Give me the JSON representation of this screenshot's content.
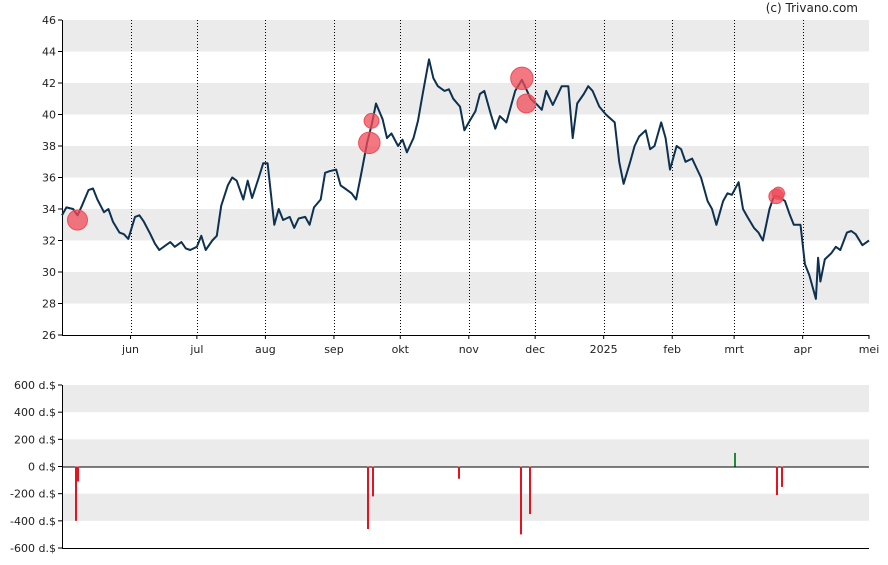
{
  "credit": "(c) Trivano.com",
  "colors": {
    "band": "#ebebeb",
    "price_line": "#0e3150",
    "marker_fill": "#ef4b57",
    "sell_bar": "#e5131f",
    "buy_bar": "#1f8b3a",
    "axis": "#000000",
    "grid_dots": "#000000"
  },
  "chart_data": [
    {
      "type": "line",
      "grid": "alternating horizontal bands + dotted vertical month lines",
      "ylim": [
        26,
        46
      ],
      "y_ticks": [
        "26",
        "28",
        "30",
        "32",
        "34",
        "36",
        "38",
        "40",
        "42",
        "44",
        "46"
      ],
      "x_range": [
        "2024-05-01",
        "2025-05-01"
      ],
      "x_ticks": [
        {
          "date": "2024-06-01",
          "label": "jun"
        },
        {
          "date": "2024-07-01",
          "label": "jul"
        },
        {
          "date": "2024-08-01",
          "label": "aug"
        },
        {
          "date": "2024-09-01",
          "label": "sep"
        },
        {
          "date": "2024-10-01",
          "label": "okt"
        },
        {
          "date": "2024-11-01",
          "label": "nov"
        },
        {
          "date": "2024-12-01",
          "label": "dec"
        },
        {
          "date": "2025-01-01",
          "label": "2025"
        },
        {
          "date": "2025-02-01",
          "label": "feb"
        },
        {
          "date": "2025-03-01",
          "label": "mrt"
        },
        {
          "date": "2025-04-01",
          "label": "apr"
        },
        {
          "date": "2025-05-01",
          "label": "mei"
        }
      ],
      "series": [
        {
          "points": [
            [
              "2024-05-01",
              33.6
            ],
            [
              "2024-05-03",
              34.1
            ],
            [
              "2024-05-06",
              34.0
            ],
            [
              "2024-05-08",
              33.6
            ],
            [
              "2024-05-10",
              34.2
            ],
            [
              "2024-05-13",
              35.2
            ],
            [
              "2024-05-15",
              35.3
            ],
            [
              "2024-05-17",
              34.6
            ],
            [
              "2024-05-20",
              33.8
            ],
            [
              "2024-05-22",
              34.0
            ],
            [
              "2024-05-24",
              33.2
            ],
            [
              "2024-05-27",
              32.5
            ],
            [
              "2024-05-29",
              32.4
            ],
            [
              "2024-05-31",
              32.1
            ],
            [
              "2024-06-03",
              33.5
            ],
            [
              "2024-06-05",
              33.6
            ],
            [
              "2024-06-07",
              33.2
            ],
            [
              "2024-06-10",
              32.4
            ],
            [
              "2024-06-12",
              31.8
            ],
            [
              "2024-06-14",
              31.4
            ],
            [
              "2024-06-17",
              31.7
            ],
            [
              "2024-06-19",
              31.9
            ],
            [
              "2024-06-21",
              31.6
            ],
            [
              "2024-06-24",
              31.9
            ],
            [
              "2024-06-26",
              31.5
            ],
            [
              "2024-06-28",
              31.4
            ],
            [
              "2024-07-01",
              31.6
            ],
            [
              "2024-07-03",
              32.3
            ],
            [
              "2024-07-05",
              31.4
            ],
            [
              "2024-07-08",
              32.0
            ],
            [
              "2024-07-10",
              32.3
            ],
            [
              "2024-07-12",
              34.2
            ],
            [
              "2024-07-15",
              35.5
            ],
            [
              "2024-07-17",
              36.0
            ],
            [
              "2024-07-19",
              35.8
            ],
            [
              "2024-07-22",
              34.6
            ],
            [
              "2024-07-24",
              35.8
            ],
            [
              "2024-07-26",
              34.7
            ],
            [
              "2024-07-29",
              36.0
            ],
            [
              "2024-07-31",
              36.9
            ],
            [
              "2024-08-02",
              36.9
            ],
            [
              "2024-08-05",
              33.0
            ],
            [
              "2024-08-07",
              34.0
            ],
            [
              "2024-08-09",
              33.3
            ],
            [
              "2024-08-12",
              33.5
            ],
            [
              "2024-08-14",
              32.8
            ],
            [
              "2024-08-16",
              33.4
            ],
            [
              "2024-08-19",
              33.5
            ],
            [
              "2024-08-21",
              33.0
            ],
            [
              "2024-08-23",
              34.1
            ],
            [
              "2024-08-26",
              34.6
            ],
            [
              "2024-08-28",
              36.3
            ],
            [
              "2024-08-30",
              36.4
            ],
            [
              "2024-09-02",
              36.5
            ],
            [
              "2024-09-04",
              35.5
            ],
            [
              "2024-09-06",
              35.3
            ],
            [
              "2024-09-09",
              35.0
            ],
            [
              "2024-09-11",
              34.6
            ],
            [
              "2024-09-13",
              36.0
            ],
            [
              "2024-09-16",
              38.2
            ],
            [
              "2024-09-18",
              39.3
            ],
            [
              "2024-09-20",
              40.7
            ],
            [
              "2024-09-23",
              39.7
            ],
            [
              "2024-09-25",
              38.5
            ],
            [
              "2024-09-27",
              38.8
            ],
            [
              "2024-09-30",
              38.0
            ],
            [
              "2024-10-02",
              38.4
            ],
            [
              "2024-10-04",
              37.6
            ],
            [
              "2024-10-07",
              38.5
            ],
            [
              "2024-10-09",
              39.6
            ],
            [
              "2024-10-11",
              41.2
            ],
            [
              "2024-10-14",
              43.5
            ],
            [
              "2024-10-16",
              42.3
            ],
            [
              "2024-10-18",
              41.8
            ],
            [
              "2024-10-21",
              41.5
            ],
            [
              "2024-10-23",
              41.6
            ],
            [
              "2024-10-25",
              41.0
            ],
            [
              "2024-10-28",
              40.5
            ],
            [
              "2024-10-30",
              39.0
            ],
            [
              "2024-11-01",
              39.5
            ],
            [
              "2024-11-04",
              40.2
            ],
            [
              "2024-11-06",
              41.3
            ],
            [
              "2024-11-08",
              41.5
            ],
            [
              "2024-11-11",
              40.0
            ],
            [
              "2024-11-13",
              39.1
            ],
            [
              "2024-11-15",
              39.9
            ],
            [
              "2024-11-18",
              39.5
            ],
            [
              "2024-11-20",
              40.5
            ],
            [
              "2024-11-22",
              41.5
            ],
            [
              "2024-11-25",
              42.2
            ],
            [
              "2024-11-27",
              41.6
            ],
            [
              "2024-11-29",
              41.0
            ],
            [
              "2024-12-02",
              40.6
            ],
            [
              "2024-12-04",
              40.3
            ],
            [
              "2024-12-06",
              41.5
            ],
            [
              "2024-12-09",
              40.6
            ],
            [
              "2024-12-11",
              41.2
            ],
            [
              "2024-12-13",
              41.8
            ],
            [
              "2024-12-16",
              41.8
            ],
            [
              "2024-12-18",
              38.5
            ],
            [
              "2024-12-20",
              40.7
            ],
            [
              "2024-12-23",
              41.3
            ],
            [
              "2024-12-25",
              41.8
            ],
            [
              "2024-12-27",
              41.5
            ],
            [
              "2024-12-30",
              40.5
            ],
            [
              "2025-01-02",
              40.0
            ],
            [
              "2025-01-06",
              39.5
            ],
            [
              "2025-01-08",
              37.0
            ],
            [
              "2025-01-10",
              35.6
            ],
            [
              "2025-01-13",
              37.0
            ],
            [
              "2025-01-15",
              38.0
            ],
            [
              "2025-01-17",
              38.6
            ],
            [
              "2025-01-20",
              39.0
            ],
            [
              "2025-01-22",
              37.8
            ],
            [
              "2025-01-24",
              38.0
            ],
            [
              "2025-01-27",
              39.5
            ],
            [
              "2025-01-29",
              38.5
            ],
            [
              "2025-01-31",
              36.5
            ],
            [
              "2025-02-03",
              38.0
            ],
            [
              "2025-02-05",
              37.8
            ],
            [
              "2025-02-07",
              37.0
            ],
            [
              "2025-02-10",
              37.2
            ],
            [
              "2025-02-12",
              36.6
            ],
            [
              "2025-02-14",
              36.0
            ],
            [
              "2025-02-17",
              34.5
            ],
            [
              "2025-02-19",
              34.0
            ],
            [
              "2025-02-21",
              33.0
            ],
            [
              "2025-02-24",
              34.5
            ],
            [
              "2025-02-26",
              35.0
            ],
            [
              "2025-02-28",
              34.9
            ],
            [
              "2025-03-03",
              35.7
            ],
            [
              "2025-03-05",
              34.0
            ],
            [
              "2025-03-07",
              33.5
            ],
            [
              "2025-03-10",
              32.8
            ],
            [
              "2025-03-12",
              32.5
            ],
            [
              "2025-03-14",
              32.0
            ],
            [
              "2025-03-17",
              34.0
            ],
            [
              "2025-03-19",
              34.8
            ],
            [
              "2025-03-21",
              34.8
            ],
            [
              "2025-03-24",
              34.5
            ],
            [
              "2025-03-26",
              33.7
            ],
            [
              "2025-03-28",
              33.0
            ],
            [
              "2025-03-31",
              33.0
            ],
            [
              "2025-04-02",
              30.5
            ],
            [
              "2025-04-04",
              29.8
            ],
            [
              "2025-04-07",
              28.3
            ],
            [
              "2025-04-08",
              30.9
            ],
            [
              "2025-04-09",
              29.4
            ],
            [
              "2025-04-11",
              30.8
            ],
            [
              "2025-04-14",
              31.2
            ],
            [
              "2025-04-16",
              31.6
            ],
            [
              "2025-04-18",
              31.4
            ],
            [
              "2025-04-21",
              32.5
            ],
            [
              "2025-04-23",
              32.6
            ],
            [
              "2025-04-25",
              32.4
            ],
            [
              "2025-04-28",
              31.7
            ],
            [
              "2025-05-01",
              32.0
            ]
          ]
        }
      ],
      "markers": [
        {
          "date": "2024-05-08",
          "value": 33.3,
          "size": 400
        },
        {
          "date": "2024-09-17",
          "value": 38.2,
          "size": 460
        },
        {
          "date": "2024-09-18",
          "value": 39.6,
          "size": 220
        },
        {
          "date": "2024-11-25",
          "value": 42.3,
          "size": 500
        },
        {
          "date": "2024-11-27",
          "value": 40.7,
          "size": 350
        },
        {
          "date": "2025-03-20",
          "value": 34.8,
          "size": 210
        },
        {
          "date": "2025-03-21",
          "value": 35.0,
          "size": 150
        }
      ]
    },
    {
      "type": "bar",
      "ylim": [
        -600,
        600
      ],
      "y_ticks": [
        "600 d.$",
        "400 d.$",
        "200 d.$",
        "0 d.$",
        "-200 d.$",
        "-400 d.$",
        "-600 d.$"
      ],
      "x_range": [
        "2024-05-01",
        "2025-05-01"
      ],
      "bars": [
        {
          "date": "2024-05-07",
          "value": -400
        },
        {
          "date": "2024-05-08",
          "value": -110
        },
        {
          "date": "2024-09-16",
          "value": -460
        },
        {
          "date": "2024-09-18",
          "value": -220
        },
        {
          "date": "2024-10-27",
          "value": -90
        },
        {
          "date": "2024-11-24",
          "value": -500
        },
        {
          "date": "2024-11-28",
          "value": -350
        },
        {
          "date": "2025-03-01",
          "value": 100
        },
        {
          "date": "2025-03-20",
          "value": -210
        },
        {
          "date": "2025-03-22",
          "value": -150
        }
      ]
    }
  ]
}
